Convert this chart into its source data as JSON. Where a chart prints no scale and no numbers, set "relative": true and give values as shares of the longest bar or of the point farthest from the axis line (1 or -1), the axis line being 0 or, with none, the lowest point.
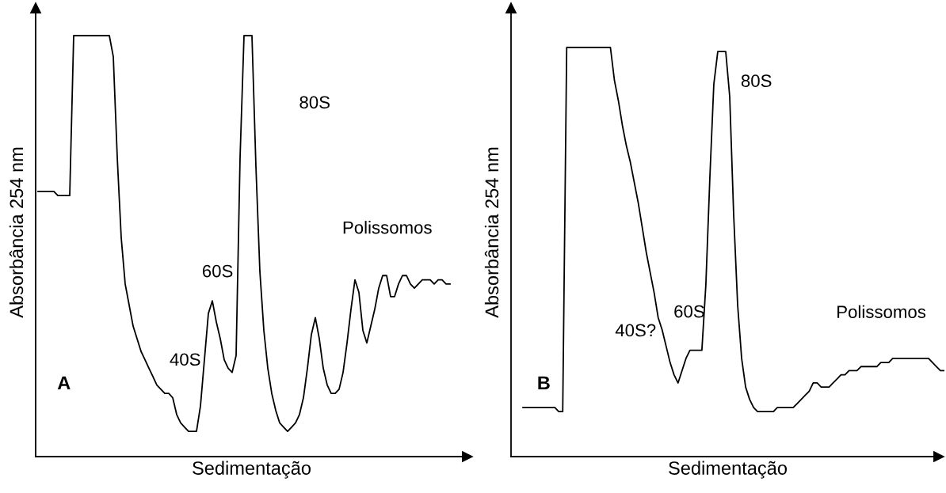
{
  "chart_data": [
    {
      "type": "line",
      "relative": true,
      "xlabel": "Sedimentação",
      "ylabel": "Absorbância 254 nm",
      "annotations": [
        "80S",
        "Polissomos",
        "60S",
        "40S",
        "A"
      ],
      "tick_labels": false,
      "marker": "none",
      "line_style": "solid",
      "color": "#000000",
      "categories": [
        null,
        null,
        null,
        null,
        null,
        null,
        null,
        null,
        null,
        null,
        null,
        null,
        null,
        null,
        null,
        null,
        null,
        null,
        null,
        null,
        null,
        null,
        null,
        null,
        null,
        null,
        null,
        null,
        null,
        null,
        null,
        null,
        null,
        null,
        null,
        null,
        null,
        null,
        null,
        null,
        null,
        null,
        null,
        null,
        null,
        null,
        null,
        null,
        null,
        null,
        null,
        null,
        null,
        null,
        null,
        null,
        null,
        null,
        null,
        null,
        null,
        null,
        null,
        null,
        null,
        null,
        null,
        null,
        null,
        null,
        null,
        null,
        null,
        null,
        null,
        null,
        null,
        null,
        null,
        null,
        null,
        null,
        null,
        null,
        null,
        null,
        null,
        null,
        null,
        null,
        null,
        null,
        null,
        null,
        null,
        null,
        null,
        null,
        null,
        null,
        null,
        null,
        null,
        null,
        null
      ],
      "values": [
        0.63,
        0.63,
        0.63,
        0.63,
        0.63,
        0.62,
        0.62,
        0.62,
        0.62,
        1,
        1,
        1,
        1,
        1,
        1,
        1,
        1,
        1,
        1,
        0.95,
        0.71,
        0.52,
        0.41,
        0.36,
        0.31,
        0.28,
        0.25,
        0.23,
        0.21,
        0.19,
        0.17,
        0.16,
        0.15,
        0.15,
        0.14,
        0.1,
        0.08,
        0.07,
        0.06,
        0.06,
        0.06,
        0.12,
        0.23,
        0.34,
        0.37,
        0.32,
        0.28,
        0.23,
        0.21,
        0.2,
        0.24,
        0.71,
        1,
        1,
        1,
        0.69,
        0.44,
        0.3,
        0.21,
        0.15,
        0.11,
        0.08,
        0.07,
        0.06,
        0.07,
        0.08,
        0.1,
        0.14,
        0.21,
        0.29,
        0.33,
        0.28,
        0.21,
        0.17,
        0.15,
        0.15,
        0.16,
        0.2,
        0.27,
        0.35,
        0.42,
        0.39,
        0.3,
        0.27,
        0.31,
        0.35,
        0.4,
        0.43,
        0.43,
        0.38,
        0.38,
        0.41,
        0.43,
        0.43,
        0.41,
        0.4,
        0.41,
        0.42,
        0.42,
        0.42,
        0.41,
        0.42,
        0.42,
        0.41,
        0.41
      ]
    },
    {
      "type": "line",
      "relative": true,
      "xlabel": "Sedimentação",
      "ylabel": "Absorbância 254 nm",
      "annotations": [
        "80S",
        "Polissomos",
        "60S",
        "40S?",
        "B"
      ],
      "tick_labels": false,
      "marker": "none",
      "line_style": "solid",
      "color": "#000000",
      "categories": [
        null,
        null,
        null,
        null,
        null,
        null,
        null,
        null,
        null,
        null,
        null,
        null,
        null,
        null,
        null,
        null,
        null,
        null,
        null,
        null,
        null,
        null,
        null,
        null,
        null,
        null,
        null,
        null,
        null,
        null,
        null,
        null,
        null,
        null,
        null,
        null,
        null,
        null,
        null,
        null,
        null,
        null,
        null,
        null,
        null,
        null,
        null,
        null,
        null,
        null,
        null,
        null,
        null,
        null,
        null,
        null,
        null,
        null,
        null,
        null,
        null,
        null,
        null,
        null,
        null,
        null,
        null,
        null,
        null,
        null,
        null,
        null,
        null,
        null,
        null,
        null,
        null,
        null,
        null,
        null,
        null,
        null,
        null,
        null,
        null,
        null,
        null,
        null,
        null,
        null,
        null,
        null,
        null,
        null,
        null,
        null,
        null,
        null,
        null,
        null,
        null,
        null,
        null,
        null,
        null,
        null,
        null
      ],
      "values": [
        0.12,
        0.12,
        0.12,
        0.12,
        0.12,
        0.12,
        0.12,
        0.12,
        0.12,
        0.11,
        0.11,
        1,
        1,
        1,
        1,
        1,
        1,
        1,
        1,
        1,
        1,
        1,
        1,
        0.92,
        0.87,
        0.81,
        0.76,
        0.72,
        0.67,
        0.62,
        0.56,
        0.5,
        0.45,
        0.4,
        0.34,
        0.31,
        0.27,
        0.23,
        0.2,
        0.18,
        0.21,
        0.24,
        0.26,
        0.26,
        0.26,
        0.26,
        0.42,
        0.68,
        0.91,
        0.99,
        0.99,
        0.99,
        0.88,
        0.59,
        0.37,
        0.24,
        0.17,
        0.14,
        0.12,
        0.11,
        0.11,
        0.11,
        0.11,
        0.11,
        0.12,
        0.12,
        0.12,
        0.12,
        0.12,
        0.13,
        0.14,
        0.15,
        0.16,
        0.18,
        0.18,
        0.17,
        0.17,
        0.17,
        0.18,
        0.19,
        0.2,
        0.2,
        0.21,
        0.21,
        0.21,
        0.22,
        0.22,
        0.22,
        0.22,
        0.22,
        0.23,
        0.23,
        0.23,
        0.24,
        0.24,
        0.24,
        0.24,
        0.24,
        0.24,
        0.24,
        0.24,
        0.24,
        0.24,
        0.23,
        0.22,
        0.21,
        0.21
      ]
    }
  ]
}
